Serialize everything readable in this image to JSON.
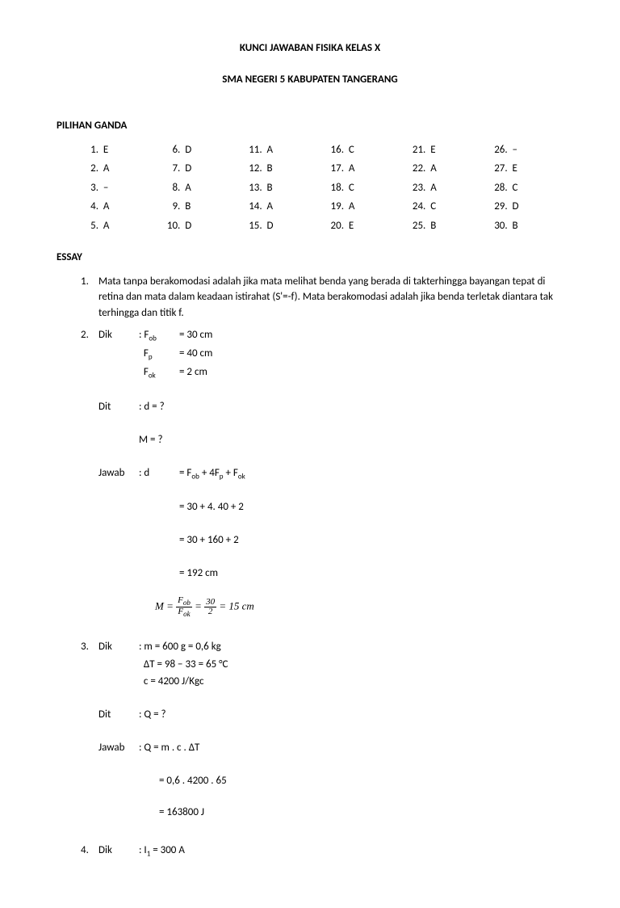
{
  "title": "KUNCI JAWABAN FISIKA KELAS X",
  "subtitle": "SMA NEGERI 5 KABUPATEN TANGERANG",
  "section_mc": "PILIHAN GANDA",
  "section_essay": "ESSAY",
  "mc": [
    {
      "n": "1.",
      "a": "E"
    },
    {
      "n": "6.",
      "a": "D"
    },
    {
      "n": "11.",
      "a": "A"
    },
    {
      "n": "16.",
      "a": "C"
    },
    {
      "n": "21.",
      "a": "E"
    },
    {
      "n": "26.",
      "a": "–"
    },
    {
      "n": "2.",
      "a": "A"
    },
    {
      "n": "7.",
      "a": "D"
    },
    {
      "n": "12.",
      "a": "B"
    },
    {
      "n": "17.",
      "a": "A"
    },
    {
      "n": "22.",
      "a": "A"
    },
    {
      "n": "27.",
      "a": "E"
    },
    {
      "n": "3.",
      "a": "–"
    },
    {
      "n": "8.",
      "a": "A"
    },
    {
      "n": "13.",
      "a": "B"
    },
    {
      "n": "18.",
      "a": "C"
    },
    {
      "n": "23.",
      "a": "A"
    },
    {
      "n": "28.",
      "a": "C"
    },
    {
      "n": "4.",
      "a": "A"
    },
    {
      "n": "9.",
      "a": "B"
    },
    {
      "n": "14.",
      "a": "A"
    },
    {
      "n": "19.",
      "a": "A"
    },
    {
      "n": "24.",
      "a": "C"
    },
    {
      "n": "29.",
      "a": "D"
    },
    {
      "n": "5.",
      "a": "A"
    },
    {
      "n": "10.",
      "a": "D"
    },
    {
      "n": "15.",
      "a": "D"
    },
    {
      "n": "20.",
      "a": "E"
    },
    {
      "n": "25.",
      "a": "B"
    },
    {
      "n": "30.",
      "a": "B"
    }
  ],
  "essay1": {
    "num": "1.",
    "text": "Mata tanpa berakomodasi adalah jika mata melihat benda yang berada di takterhingga bayangan tepat di retina dan mata dalam keadaan istirahat (S'=-f). Mata berakomodasi adalah jika benda terletak diantara tak terhingga dan titik f."
  },
  "essay2": {
    "num": "2.",
    "dik": "Dik",
    "fob_label": ": F",
    "fob_sub": "ob",
    "fob_val": "= 30 cm",
    "fp_label": "F",
    "fp_sub": "p",
    "fp_val": "= 40 cm",
    "fok_label": "F",
    "fok_sub": "ok",
    "fok_val": "= 2 cm",
    "dit": "Dit",
    "dit_val": ": d = ?",
    "m_q": "M = ?",
    "jawab": "Jawab",
    "jawab_d": ": d",
    "eq1": "= F",
    "eq1_sub1": "ob",
    "eq1_mid": " + 4F",
    "eq1_sub2": "p",
    "eq1_mid2": " + F",
    "eq1_sub3": "ok",
    "eq2": "= 30 + 4. 40 + 2",
    "eq3": "= 30 + 160 + 2",
    "eq4": "= 192 cm",
    "formula_M": "M = ",
    "frac1_num": "F",
    "frac1_num_sub": "ob",
    "frac1_den": "F",
    "frac1_den_sub": "ok",
    "formula_eq": " = ",
    "frac2_num": "30",
    "frac2_den": "2",
    "formula_end": " = 15 cm"
  },
  "essay3": {
    "num": "3.",
    "dik": "Dik",
    "m_line": ": m = 600 g = 0,6 kg",
    "dt_line": "ΔT = 98 − 33 = 65 °C",
    "c_line": "c = 4200 J/Kgc",
    "dit": "Dit",
    "dit_val": ": Q = ?",
    "jawab": "Jawab",
    "jawab_eq": ": Q = m . c . ΔT",
    "eq2": "= 0,6 . 4200 . 65",
    "eq3": "= 163800 J"
  },
  "essay4": {
    "num": "4.",
    "dik": "Dik",
    "i_label": ": I",
    "i_sub": "1",
    "i_val": "   = 300 A"
  }
}
